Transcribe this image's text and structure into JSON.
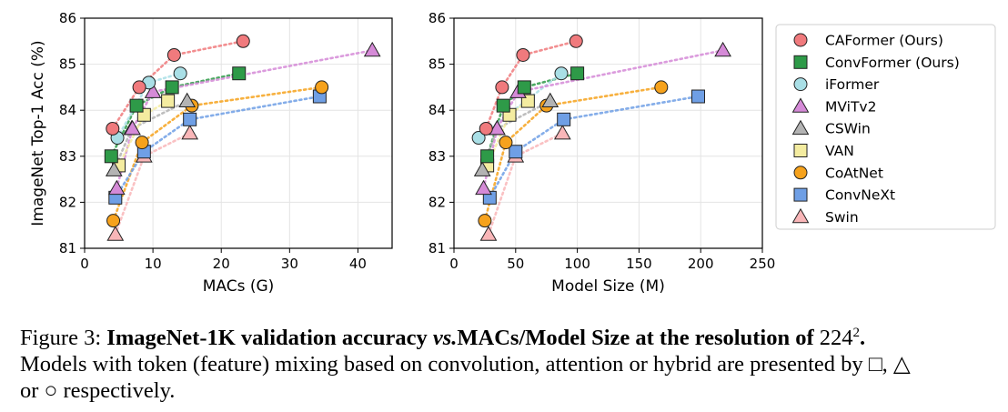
{
  "chart_data": [
    {
      "type": "scatter",
      "xlabel": "MACs (G)",
      "ylabel": "ImageNet Top-1 Acc (%)",
      "xlim": [
        0,
        45
      ],
      "ylim": [
        81,
        86
      ],
      "xticks": [
        "0",
        "10",
        "20",
        "30",
        "40"
      ],
      "yticks": [
        "81",
        "82",
        "83",
        "84",
        "85",
        "86"
      ],
      "grid": true,
      "series": [
        {
          "name": "CAFormer (Ours)",
          "x": [
            4.1,
            8.0,
            13.1,
            23.2
          ],
          "y": [
            83.6,
            84.5,
            85.2,
            85.5
          ]
        },
        {
          "name": "ConvFormer (Ours)",
          "x": [
            3.9,
            7.6,
            12.8,
            22.6
          ],
          "y": [
            83.0,
            84.1,
            84.5,
            84.8
          ]
        },
        {
          "name": "iFormer",
          "x": [
            4.8,
            9.4,
            14.0
          ],
          "y": [
            83.4,
            84.6,
            84.8
          ]
        },
        {
          "name": "MViTv2",
          "x": [
            4.7,
            7.0,
            10.0,
            42.1
          ],
          "y": [
            82.3,
            83.6,
            84.4,
            85.3
          ]
        },
        {
          "name": "CSWin",
          "x": [
            4.3,
            6.9,
            15.0
          ],
          "y": [
            82.7,
            83.6,
            84.2
          ]
        },
        {
          "name": "VAN",
          "x": [
            5.0,
            8.7,
            12.2
          ],
          "y": [
            82.8,
            83.9,
            84.2
          ]
        },
        {
          "name": "CoAtNet",
          "x": [
            4.2,
            8.4,
            15.7,
            34.7
          ],
          "y": [
            81.6,
            83.3,
            84.1,
            84.5
          ]
        },
        {
          "name": "ConvNeXt",
          "x": [
            4.5,
            8.7,
            15.4,
            34.4
          ],
          "y": [
            82.1,
            83.1,
            83.8,
            84.3
          ]
        },
        {
          "name": "Swin",
          "x": [
            4.5,
            8.7,
            15.4
          ],
          "y": [
            81.3,
            83.0,
            83.5
          ]
        }
      ]
    },
    {
      "type": "scatter",
      "xlabel": "Model Size (M)",
      "ylabel": "",
      "xlim": [
        0,
        250
      ],
      "ylim": [
        81,
        86
      ],
      "xticks": [
        "0",
        "50",
        "100",
        "150",
        "200",
        "250"
      ],
      "yticks": [
        "81",
        "82",
        "83",
        "84",
        "85",
        "86"
      ],
      "grid": true,
      "series": [
        {
          "name": "CAFormer (Ours)",
          "x": [
            26,
            39,
            56,
            99
          ],
          "y": [
            83.6,
            84.5,
            85.2,
            85.5
          ]
        },
        {
          "name": "ConvFormer (Ours)",
          "x": [
            27,
            40,
            57,
            100
          ],
          "y": [
            83.0,
            84.1,
            84.5,
            84.8
          ]
        },
        {
          "name": "iFormer",
          "x": [
            20,
            87
          ],
          "y": [
            83.4,
            84.8
          ]
        },
        {
          "name": "MViTv2",
          "x": [
            24,
            35,
            52,
            218
          ],
          "y": [
            82.3,
            83.6,
            84.4,
            85.3
          ]
        },
        {
          "name": "CSWin",
          "x": [
            23,
            35,
            78
          ],
          "y": [
            82.7,
            83.6,
            84.2
          ]
        },
        {
          "name": "VAN",
          "x": [
            27,
            45,
            60
          ],
          "y": [
            82.8,
            83.9,
            84.2
          ]
        },
        {
          "name": "CoAtNet",
          "x": [
            25,
            42,
            75,
            168
          ],
          "y": [
            81.6,
            83.3,
            84.1,
            84.5
          ]
        },
        {
          "name": "ConvNeXt",
          "x": [
            29,
            50,
            89,
            198
          ],
          "y": [
            82.1,
            83.1,
            83.8,
            84.3
          ]
        },
        {
          "name": "Swin",
          "x": [
            28,
            50,
            88
          ],
          "y": [
            81.3,
            83.0,
            83.5
          ]
        }
      ]
    }
  ],
  "legend": {
    "placement": "right",
    "items": [
      {
        "name": "CAFormer (Ours)",
        "marker": "circle",
        "color": "#f07a7d"
      },
      {
        "name": "ConvFormer (Ours)",
        "marker": "square",
        "color": "#2e9a48"
      },
      {
        "name": "iFormer",
        "marker": "circle",
        "color": "#a9dfe6"
      },
      {
        "name": "MViTv2",
        "marker": "triangle",
        "color": "#d58ad7"
      },
      {
        "name": "CSWin",
        "marker": "triangle",
        "color": "#b3b3b3"
      },
      {
        "name": "VAN",
        "marker": "square",
        "color": "#f4eca0"
      },
      {
        "name": "CoAtNet",
        "marker": "circle",
        "color": "#f6a21c"
      },
      {
        "name": "ConvNeXt",
        "marker": "square",
        "color": "#6f9fe5"
      },
      {
        "name": "Swin",
        "marker": "triangle",
        "color": "#f9b6b8"
      }
    ]
  },
  "caption": {
    "label": "Figure 3:",
    "title_a": "ImageNet-1K validation accuracy",
    "title_vs": "vs.",
    "title_b": "MACs/Model Size at the resolution of",
    "resolution_base": "224",
    "resolution_exp": "2",
    "title_end": ".",
    "line2": "Models with token (feature) mixing based on convolution, attention or hybrid are presented by",
    "sym_square": "□",
    "sep": ",",
    "sym_triangle": "△",
    "line3_pre": "or",
    "sym_circle": "○",
    "line3_post": "respectively."
  }
}
